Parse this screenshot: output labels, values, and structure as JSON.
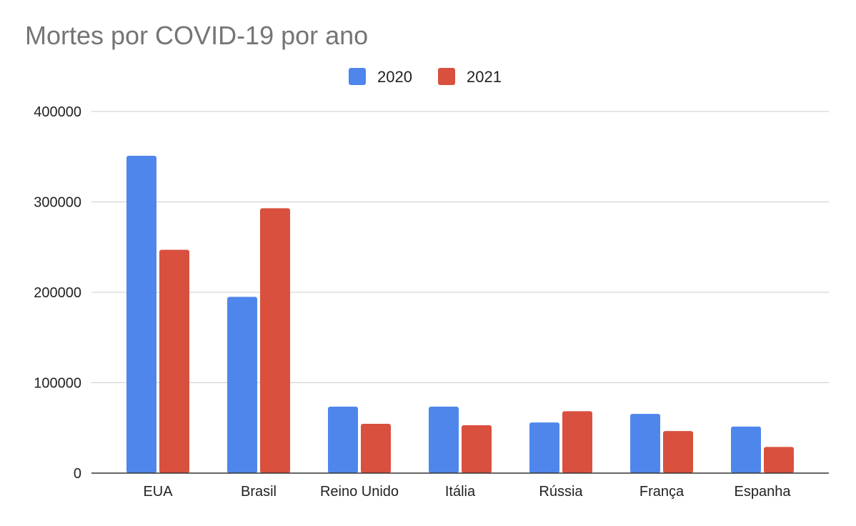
{
  "chart_data": {
    "type": "bar",
    "title": "Mortes por COVID-19 por ano",
    "xlabel": "",
    "ylabel": "",
    "categories": [
      "EUA",
      "Brasil",
      "Reino Unido",
      "Itália",
      "Rússia",
      "França",
      "Espanha"
    ],
    "series": [
      {
        "name": "2020",
        "color": "#4f86ec",
        "values": [
          351000,
          195000,
          73500,
          73500,
          56000,
          65500,
          51500
        ]
      },
      {
        "name": "2021",
        "color": "#d9503f",
        "values": [
          247000,
          293000,
          54500,
          53000,
          68500,
          46500,
          29000
        ]
      }
    ],
    "ylim": [
      0,
      400000
    ],
    "yticks": [
      0,
      100000,
      200000,
      300000,
      400000
    ],
    "ytick_labels": [
      "0",
      "100000",
      "200000",
      "300000",
      "400000"
    ],
    "grid": true,
    "legend_position": "top-center",
    "colors": {
      "title": "#757575",
      "axis_text": "#222222",
      "grid": "#cccccc",
      "baseline": "#333333"
    }
  }
}
